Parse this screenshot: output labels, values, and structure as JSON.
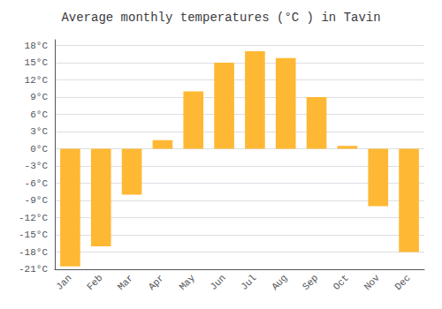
{
  "chart_data": {
    "type": "bar",
    "title": "Average monthly temperatures (°C ) in Tavin",
    "categories": [
      "Jan",
      "Feb",
      "Mar",
      "Apr",
      "May",
      "Jun",
      "Jul",
      "Aug",
      "Sep",
      "Oct",
      "Nov",
      "Dec"
    ],
    "values": [
      -20.5,
      -17.0,
      -8.0,
      1.5,
      10.0,
      15.0,
      17.0,
      15.8,
      9.0,
      0.5,
      -10.0,
      -18.0
    ],
    "color": "#FFB833",
    "ylim": [
      -21,
      19
    ],
    "yticks": [
      {
        "value": -21,
        "label": "-21°C"
      },
      {
        "value": -18,
        "label": "-18°C"
      },
      {
        "value": -15,
        "label": "-15°C"
      },
      {
        "value": -12,
        "label": "-12°C"
      },
      {
        "value": -9,
        "label": "-9°C"
      },
      {
        "value": -6,
        "label": "-6°C"
      },
      {
        "value": -3,
        "label": "-3°C"
      },
      {
        "value": 0,
        "label": "0°C"
      },
      {
        "value": 3,
        "label": "3°C"
      },
      {
        "value": 6,
        "label": "6°C"
      },
      {
        "value": 9,
        "label": "9°C"
      },
      {
        "value": 12,
        "label": "12°C"
      },
      {
        "value": 15,
        "label": "15°C"
      },
      {
        "value": 18,
        "label": "18°C"
      }
    ],
    "grid": true
  }
}
